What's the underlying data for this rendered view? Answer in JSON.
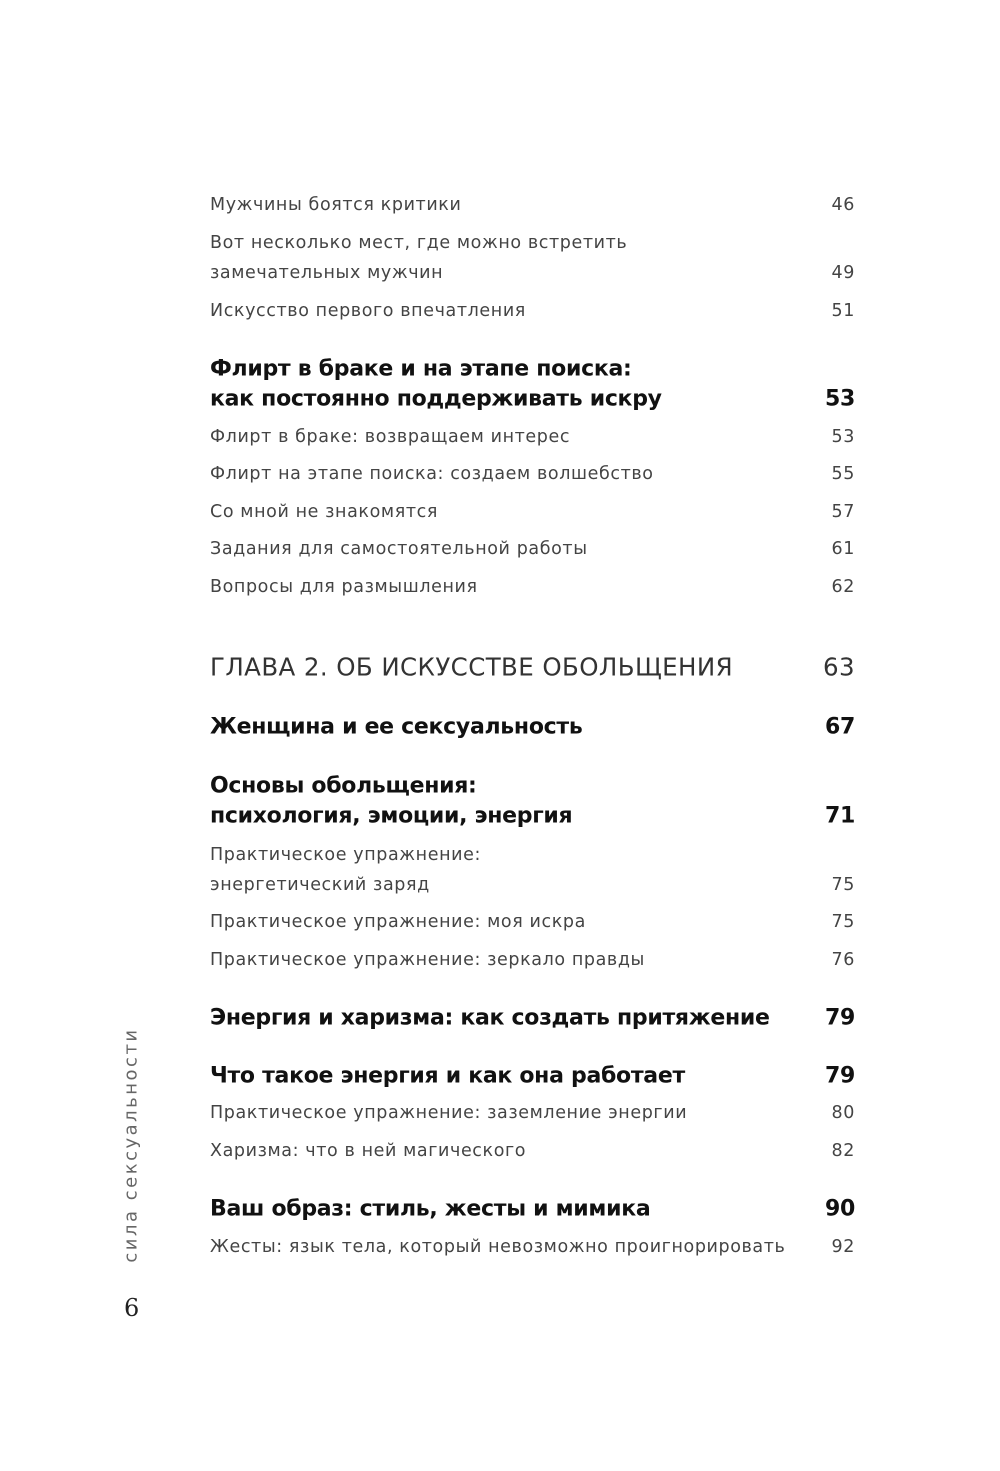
{
  "toc": [
    {
      "style": "sub",
      "lines": [
        "Мужчины боятся критики"
      ],
      "page": "46"
    },
    {
      "style": "sub",
      "lines": [
        "Вот несколько мест, где можно встретить",
        "замечательных мужчин"
      ],
      "page": "49"
    },
    {
      "style": "sub",
      "lines": [
        "Искусство первого впечатления"
      ],
      "page": "51"
    },
    {
      "style": "bold",
      "lines": [
        "Флирт в браке и на этапе поиска:",
        "как постоянно поддерживать искру"
      ],
      "page": "53"
    },
    {
      "style": "sub",
      "lines": [
        "Флирт в браке: возвращаем интерес"
      ],
      "page": "53"
    },
    {
      "style": "sub",
      "lines": [
        "Флирт на этапе поиска: создаем волшебство"
      ],
      "page": "55"
    },
    {
      "style": "sub",
      "lines": [
        "Со мной не знакомятся"
      ],
      "page": "57"
    },
    {
      "style": "sub",
      "lines": [
        "Задания для самостоятельной работы"
      ],
      "page": "61"
    },
    {
      "style": "sub",
      "lines": [
        "Вопросы для размышления"
      ],
      "page": "62"
    },
    {
      "style": "chapter",
      "lines": [
        "ГЛАВА 2. ОБ ИСКУССТВЕ ОБОЛЬЩЕНИЯ"
      ],
      "page": "63"
    },
    {
      "style": "bold",
      "lines": [
        "Женщина и ее сексуальность"
      ],
      "page": "67"
    },
    {
      "style": "bold",
      "lines": [
        "Основы обольщения:",
        "психология, эмоции, энергия"
      ],
      "page": "71"
    },
    {
      "style": "sub",
      "lines": [
        "Практическое упражнение:",
        "энергетический заряд"
      ],
      "page": "75"
    },
    {
      "style": "sub",
      "lines": [
        "Практическое упражнение: моя искра"
      ],
      "page": "75"
    },
    {
      "style": "sub",
      "lines": [
        "Практическое упражнение: зеркало правды"
      ],
      "page": "76"
    },
    {
      "style": "bold",
      "lines": [
        "Энергия и харизма: как создать притяжение"
      ],
      "page": "79"
    },
    {
      "style": "bold",
      "lines": [
        "Что такое энергия и как она работает"
      ],
      "page": "79"
    },
    {
      "style": "sub",
      "lines": [
        "Практическое упражнение: заземление энергии"
      ],
      "page": "80"
    },
    {
      "style": "sub",
      "lines": [
        "Харизма: что в ней магического"
      ],
      "page": "82"
    },
    {
      "style": "bold",
      "lines": [
        "Ваш образ: стиль, жесты и мимика"
      ],
      "page": "90"
    },
    {
      "style": "sub",
      "lines": [
        "Жесты: язык тела, который невозможно проигнорировать"
      ],
      "page": "92"
    }
  ],
  "running_head": "сила сексуальности",
  "folio": "6"
}
